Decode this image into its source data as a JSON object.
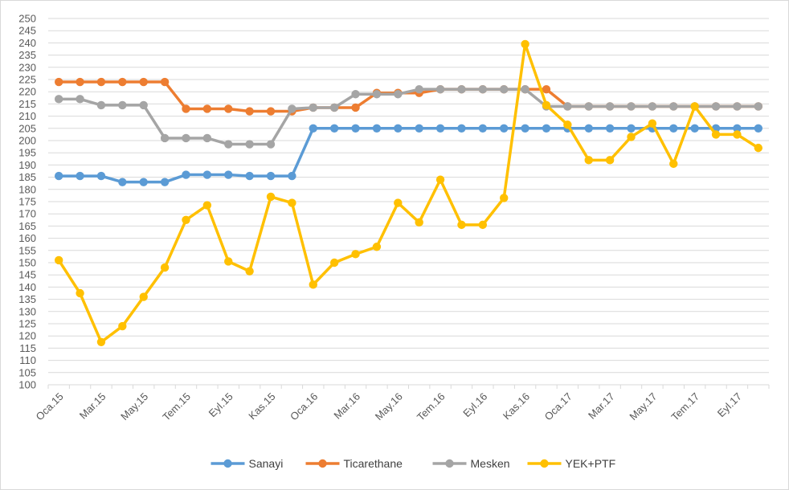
{
  "chart_data": {
    "type": "line",
    "title": "",
    "xlabel": "",
    "ylabel": "",
    "ylim": [
      100,
      250
    ],
    "ytick_step": 5,
    "grid": true,
    "legend_position": "bottom",
    "x": [
      "Oca.15",
      "Şub.15",
      "Mar.15",
      "Nis.15",
      "May.15",
      "Haz.15",
      "Tem.15",
      "Ağu.15",
      "Eyl.15",
      "Eki.15",
      "Kas.15",
      "Ara.15",
      "Oca.16",
      "Şub.16",
      "Mar.16",
      "Nis.16",
      "May.16",
      "Haz.16",
      "Tem.16",
      "Ağu.16",
      "Eyl.16",
      "Eki.16",
      "Kas.16",
      "Ara.16",
      "Oca.17",
      "Şub.17",
      "Mar.17",
      "Nis.17",
      "May.17",
      "Haz.17",
      "Tem.17",
      "Ağu.17",
      "Eyl.17",
      "Eki.17"
    ],
    "x_tick_labels": [
      "Oca.15",
      "Mar.15",
      "May.15",
      "Tem.15",
      "Eyl.15",
      "Kas.15",
      "Oca.16",
      "Mar.16",
      "May.16",
      "Tem.16",
      "Eyl.16",
      "Kas.16",
      "Oca.17",
      "Mar.17",
      "May.17",
      "Tem.17",
      "Eyl.17"
    ],
    "series": [
      {
        "name": "Sanayi",
        "color": "#5b9bd5",
        "values": [
          185.5,
          185.5,
          185.5,
          183,
          183,
          183,
          186,
          186,
          186,
          185.5,
          185.5,
          185.5,
          205,
          205,
          205,
          205,
          205,
          205,
          205,
          205,
          205,
          205,
          205,
          205,
          205,
          205,
          205,
          205,
          205,
          205,
          205,
          205,
          205,
          205
        ]
      },
      {
        "name": "Ticarethane",
        "color": "#ed7d31",
        "values": [
          224,
          224,
          224,
          224,
          224,
          224,
          213,
          213,
          213,
          212,
          212,
          212,
          213.5,
          213.5,
          213.5,
          219.5,
          219.5,
          219.5,
          221,
          221,
          221,
          221,
          221,
          221,
          214,
          214,
          214,
          214,
          214,
          214,
          214,
          214,
          214,
          214
        ]
      },
      {
        "name": "Mesken",
        "color": "#a5a5a5",
        "values": [
          217,
          217,
          214.5,
          214.5,
          214.5,
          201,
          201,
          201,
          198.5,
          198.5,
          198.5,
          213,
          213.5,
          213.5,
          219,
          219,
          219,
          221,
          221,
          221,
          221,
          221,
          221,
          214,
          214,
          214,
          214,
          214,
          214,
          214,
          214,
          214,
          214,
          214
        ]
      },
      {
        "name": "YEK+PTF",
        "color": "#ffc000",
        "values": [
          151,
          137.5,
          117.5,
          124,
          136,
          148,
          167.5,
          173.5,
          150.5,
          146.5,
          177,
          174.5,
          141,
          150,
          153.5,
          156.5,
          174.5,
          166.5,
          184,
          165.5,
          165.5,
          176.5,
          239.5,
          214.5,
          206.5,
          192,
          192,
          201.5,
          207,
          190.5,
          214,
          202.5,
          202.5,
          197
        ]
      }
    ]
  }
}
